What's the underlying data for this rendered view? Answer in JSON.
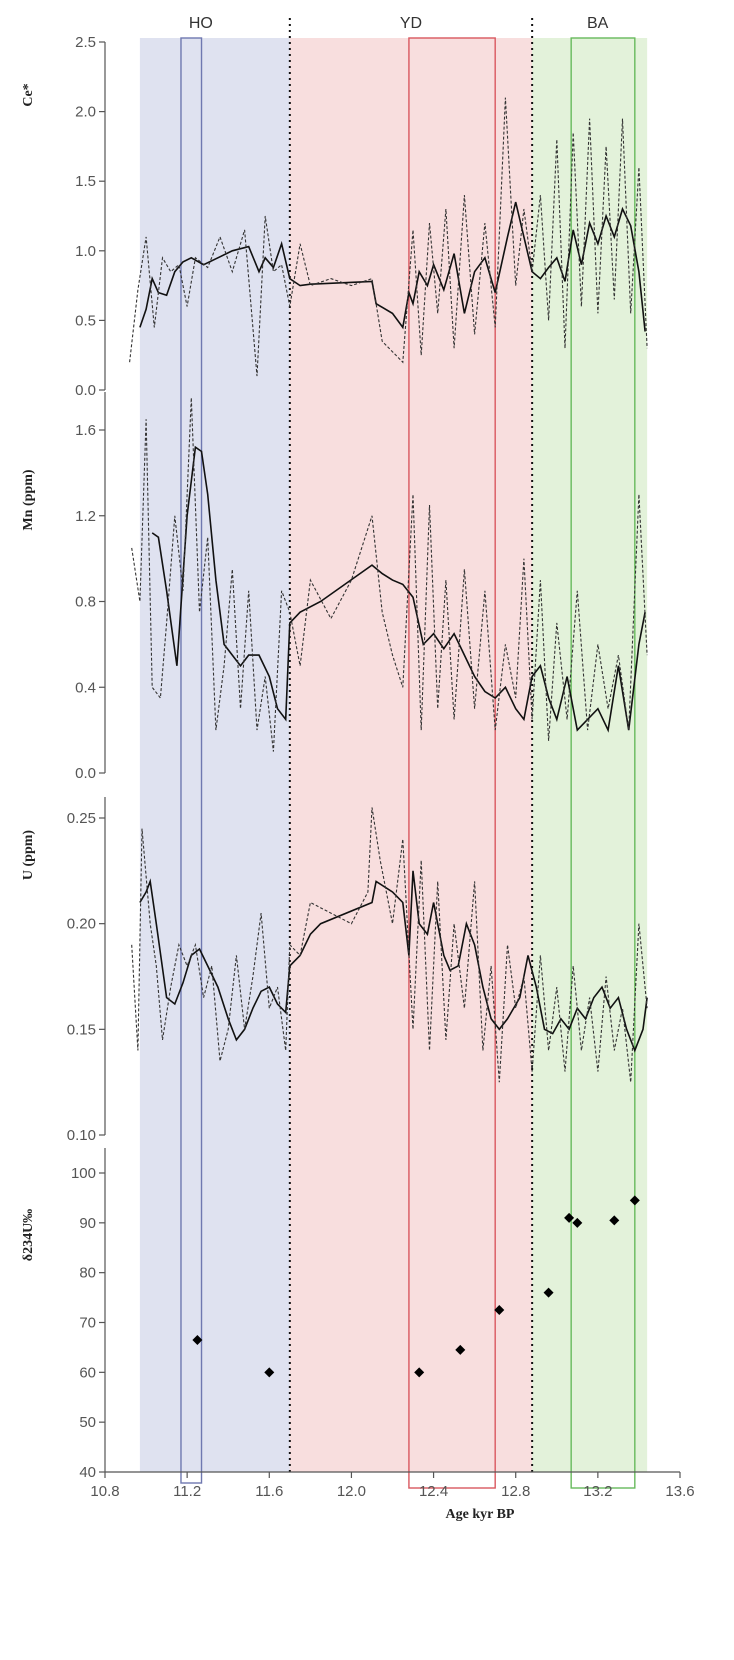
{
  "chart_data": {
    "type": "line",
    "xlabel": "Age kyr BP",
    "xlim": [
      10.8,
      13.6
    ],
    "x_ticks": [
      "10.8",
      "11.2",
      "11.6",
      "12.0",
      "12.4",
      "12.8",
      "13.2",
      "13.6"
    ],
    "zones": [
      {
        "name": "HO",
        "start": 10.97,
        "end": 11.7,
        "color": "#dfe2f0"
      },
      {
        "name": "YD",
        "start": 11.7,
        "end": 12.88,
        "color": "#f8dede"
      },
      {
        "name": "BA",
        "start": 12.88,
        "end": 13.44,
        "color": "#e3f2da"
      }
    ],
    "boundaries": [
      11.7,
      12.88
    ],
    "highlight_boxes": [
      {
        "zone": "HO",
        "start": 11.17,
        "end": 11.27,
        "panels": "all",
        "color": "#6f78b0"
      },
      {
        "zone": "YD",
        "start": 12.28,
        "end": 12.7,
        "panels": "all",
        "color": "#d9575f"
      },
      {
        "zone": "BA",
        "start": 13.07,
        "end": 13.38,
        "panels": "all",
        "color": "#67ba5c"
      }
    ],
    "panels": [
      {
        "id": "ce",
        "ylabel": "Ce*",
        "ylim": [
          0,
          2.5
        ],
        "y_ticks": [
          "0.0",
          "0.5",
          "1.0",
          "1.5",
          "2.0",
          "2.5"
        ],
        "series": [
          {
            "style": "solid",
            "x": [
              10.97,
              11.0,
              11.03,
              11.06,
              11.1,
              11.14,
              11.18,
              11.22,
              11.28,
              11.35,
              11.42,
              11.5,
              11.55,
              11.58,
              11.62,
              11.66,
              11.7,
              11.75,
              11.8,
              12.1,
              12.12,
              12.2,
              12.25,
              12.28,
              12.3,
              12.33,
              12.37,
              12.4,
              12.45,
              12.5,
              12.55,
              12.6,
              12.65,
              12.7,
              12.76,
              12.8,
              12.84,
              12.88,
              12.92,
              12.96,
              13.0,
              13.04,
              13.08,
              13.12,
              13.16,
              13.2,
              13.24,
              13.28,
              13.32,
              13.36,
              13.4,
              13.43
            ],
            "y": [
              0.45,
              0.58,
              0.8,
              0.7,
              0.68,
              0.85,
              0.92,
              0.95,
              0.9,
              0.95,
              1.0,
              1.03,
              0.85,
              0.95,
              0.88,
              1.05,
              0.8,
              0.75,
              0.76,
              0.78,
              0.62,
              0.55,
              0.45,
              0.7,
              0.62,
              0.85,
              0.75,
              0.9,
              0.72,
              0.98,
              0.55,
              0.85,
              0.95,
              0.7,
              1.1,
              1.35,
              1.1,
              0.85,
              0.8,
              0.88,
              0.95,
              0.78,
              1.15,
              0.9,
              1.2,
              1.05,
              1.25,
              1.1,
              1.3,
              1.18,
              0.85,
              0.42
            ]
          },
          {
            "style": "dashed",
            "x": [
              10.92,
              10.96,
              11.0,
              11.04,
              11.08,
              11.12,
              11.16,
              11.2,
              11.24,
              11.3,
              11.36,
              11.42,
              11.48,
              11.54,
              11.58,
              11.62,
              11.66,
              11.7,
              11.75,
              11.8,
              11.9,
              12.0,
              12.1,
              12.15,
              12.25,
              12.3,
              12.34,
              12.38,
              12.42,
              12.46,
              12.5,
              12.55,
              12.6,
              12.65,
              12.7,
              12.75,
              12.8,
              12.84,
              12.88,
              12.92,
              12.96,
              13.0,
              13.04,
              13.08,
              13.12,
              13.16,
              13.2,
              13.24,
              13.28,
              13.32,
              13.36,
              13.4,
              13.44
            ],
            "y": [
              0.2,
              0.72,
              1.1,
              0.45,
              0.95,
              0.85,
              0.9,
              0.6,
              0.95,
              0.88,
              1.1,
              0.85,
              1.15,
              0.1,
              1.25,
              0.85,
              0.9,
              0.6,
              1.05,
              0.75,
              0.8,
              0.75,
              0.8,
              0.35,
              0.2,
              1.15,
              0.25,
              1.2,
              0.55,
              1.3,
              0.3,
              1.4,
              0.4,
              1.2,
              0.45,
              2.1,
              0.75,
              1.3,
              0.85,
              1.4,
              0.5,
              1.8,
              0.3,
              1.85,
              0.6,
              1.95,
              0.55,
              1.75,
              0.65,
              1.95,
              0.55,
              1.6,
              0.3
            ]
          }
        ]
      },
      {
        "id": "mn",
        "ylabel": "Mn (ppm)",
        "ylim": [
          0,
          1.6
        ],
        "y_ticks": [
          "0.0",
          "0.4",
          "0.8",
          "1.2",
          "1.6"
        ],
        "series": [
          {
            "style": "solid",
            "x": [
              11.03,
              11.06,
              11.1,
              11.15,
              11.2,
              11.24,
              11.27,
              11.3,
              11.34,
              11.38,
              11.42,
              11.46,
              11.5,
              11.55,
              11.6,
              11.64,
              11.68,
              11.7,
              11.75,
              11.85,
              12.1,
              12.15,
              12.2,
              12.25,
              12.3,
              12.35,
              12.4,
              12.45,
              12.5,
              12.55,
              12.6,
              12.65,
              12.7,
              12.75,
              12.8,
              12.84,
              12.88,
              12.92,
              12.96,
              13.0,
              13.05,
              13.1,
              13.15,
              13.2,
              13.25,
              13.3,
              13.35,
              13.4,
              13.43
            ],
            "y": [
              1.12,
              1.1,
              0.85,
              0.5,
              1.2,
              1.52,
              1.5,
              1.3,
              0.9,
              0.6,
              0.55,
              0.5,
              0.55,
              0.55,
              0.45,
              0.3,
              0.25,
              0.7,
              0.75,
              0.8,
              0.97,
              0.93,
              0.9,
              0.88,
              0.82,
              0.6,
              0.65,
              0.58,
              0.65,
              0.55,
              0.45,
              0.38,
              0.35,
              0.4,
              0.3,
              0.25,
              0.45,
              0.5,
              0.35,
              0.25,
              0.45,
              0.2,
              0.25,
              0.3,
              0.2,
              0.5,
              0.2,
              0.6,
              0.75
            ]
          },
          {
            "style": "dashed",
            "x": [
              10.93,
              10.97,
              11.0,
              11.03,
              11.07,
              11.1,
              11.14,
              11.18,
              11.22,
              11.26,
              11.3,
              11.34,
              11.38,
              11.42,
              11.46,
              11.5,
              11.54,
              11.58,
              11.62,
              11.66,
              11.7,
              11.75,
              11.8,
              11.9,
              12.0,
              12.1,
              12.15,
              12.2,
              12.25,
              12.3,
              12.34,
              12.38,
              12.42,
              12.46,
              12.5,
              12.55,
              12.6,
              12.65,
              12.7,
              12.75,
              12.8,
              12.84,
              12.88,
              12.92,
              12.96,
              13.0,
              13.05,
              13.1,
              13.15,
              13.2,
              13.25,
              13.3,
              13.35,
              13.4,
              13.44
            ],
            "y": [
              1.05,
              0.8,
              1.65,
              0.4,
              0.35,
              0.7,
              1.2,
              0.85,
              1.75,
              0.75,
              1.1,
              0.2,
              0.5,
              0.95,
              0.3,
              0.85,
              0.2,
              0.45,
              0.1,
              0.85,
              0.75,
              0.5,
              0.9,
              0.72,
              0.9,
              1.2,
              0.75,
              0.55,
              0.4,
              1.3,
              0.2,
              1.25,
              0.3,
              0.9,
              0.25,
              0.95,
              0.3,
              0.85,
              0.2,
              0.6,
              0.35,
              1.0,
              0.25,
              0.9,
              0.15,
              0.7,
              0.25,
              0.85,
              0.2,
              0.6,
              0.3,
              0.55,
              0.2,
              1.3,
              0.55
            ]
          }
        ]
      },
      {
        "id": "u",
        "ylabel": "U (ppm)",
        "ylim": [
          0.1,
          0.25
        ],
        "y_ticks": [
          "0.10",
          "0.15",
          "0.20",
          "0.25"
        ],
        "series": [
          {
            "style": "solid",
            "x": [
              10.97,
              11.0,
              11.02,
              11.05,
              11.1,
              11.14,
              11.18,
              11.22,
              11.26,
              11.3,
              11.35,
              11.4,
              11.44,
              11.48,
              11.52,
              11.56,
              11.6,
              11.64,
              11.68,
              11.7,
              11.75,
              11.8,
              11.85,
              12.1,
              12.12,
              12.2,
              12.25,
              12.28,
              12.3,
              12.33,
              12.37,
              12.4,
              12.45,
              12.48,
              12.52,
              12.56,
              12.6,
              12.64,
              12.68,
              12.72,
              12.76,
              12.82,
              12.86,
              12.9,
              12.94,
              12.98,
              13.02,
              13.06,
              13.1,
              13.14,
              13.18,
              13.22,
              13.26,
              13.3,
              13.34,
              13.38,
              13.42,
              13.44
            ],
            "y": [
              0.21,
              0.215,
              0.22,
              0.2,
              0.165,
              0.162,
              0.172,
              0.185,
              0.188,
              0.18,
              0.17,
              0.155,
              0.145,
              0.15,
              0.16,
              0.168,
              0.17,
              0.162,
              0.158,
              0.18,
              0.185,
              0.195,
              0.2,
              0.21,
              0.22,
              0.215,
              0.21,
              0.185,
              0.225,
              0.2,
              0.195,
              0.21,
              0.185,
              0.178,
              0.18,
              0.2,
              0.19,
              0.17,
              0.155,
              0.15,
              0.155,
              0.165,
              0.185,
              0.17,
              0.15,
              0.148,
              0.155,
              0.15,
              0.16,
              0.155,
              0.165,
              0.17,
              0.16,
              0.165,
              0.15,
              0.14,
              0.15,
              0.165
            ]
          },
          {
            "style": "dashed",
            "x": [
              10.93,
              10.96,
              10.98,
              11.02,
              11.05,
              11.08,
              11.12,
              11.16,
              11.2,
              11.24,
              11.28,
              11.32,
              11.36,
              11.4,
              11.44,
              11.48,
              11.52,
              11.56,
              11.6,
              11.64,
              11.68,
              11.7,
              11.75,
              11.8,
              11.9,
              12.0,
              12.08,
              12.1,
              12.14,
              12.2,
              12.25,
              12.3,
              12.34,
              12.38,
              12.42,
              12.46,
              12.5,
              12.55,
              12.6,
              12.64,
              12.68,
              12.72,
              12.76,
              12.8,
              12.84,
              12.88,
              12.92,
              12.96,
              13.0,
              13.04,
              13.08,
              13.12,
              13.16,
              13.2,
              13.24,
              13.28,
              13.32,
              13.36,
              13.4,
              13.44
            ],
            "y": [
              0.19,
              0.14,
              0.245,
              0.2,
              0.18,
              0.145,
              0.17,
              0.19,
              0.18,
              0.19,
              0.165,
              0.18,
              0.135,
              0.15,
              0.185,
              0.15,
              0.175,
              0.205,
              0.16,
              0.17,
              0.14,
              0.19,
              0.185,
              0.21,
              0.205,
              0.2,
              0.215,
              0.255,
              0.23,
              0.2,
              0.24,
              0.15,
              0.23,
              0.14,
              0.22,
              0.145,
              0.2,
              0.16,
              0.22,
              0.14,
              0.18,
              0.125,
              0.19,
              0.16,
              0.175,
              0.13,
              0.185,
              0.14,
              0.17,
              0.13,
              0.18,
              0.14,
              0.165,
              0.13,
              0.175,
              0.14,
              0.16,
              0.125,
              0.2,
              0.16
            ]
          }
        ]
      },
      {
        "id": "d234",
        "ylabel": "δ234U‰",
        "ylim": [
          40,
          100
        ],
        "y_ticks": [
          "40",
          "50",
          "60",
          "70",
          "80",
          "90",
          "100"
        ],
        "series": [
          {
            "style": "markers",
            "marker": "diamond",
            "x": [
              11.25,
              11.6,
              12.33,
              12.53,
              12.72,
              12.96,
              13.06,
              13.1,
              13.28,
              13.38
            ],
            "y": [
              66.5,
              60.0,
              60.0,
              64.5,
              72.5,
              76.0,
              91.0,
              90.0,
              90.5,
              94.5
            ]
          }
        ]
      }
    ]
  }
}
